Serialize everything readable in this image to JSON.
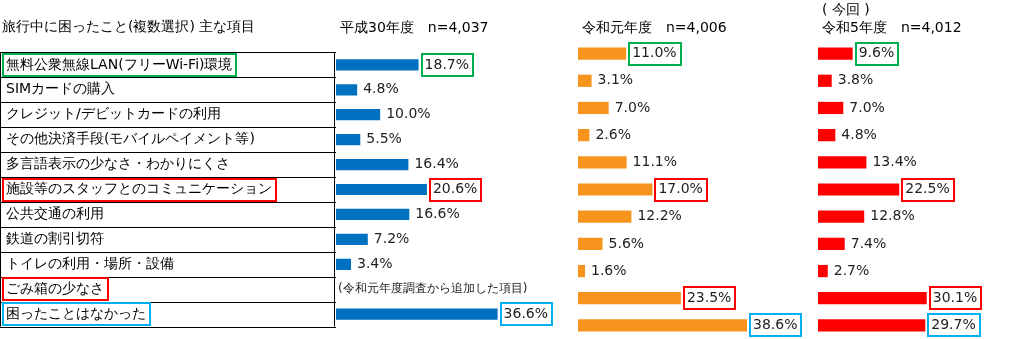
{
  "chart_data": [
    {
      "type": "bar",
      "orientation": "horizontal",
      "ylabel": "旅行中に困ったこと(複数選択) 主な項目",
      "title": "平成30年度　n=4,037",
      "categories": [
        "無料公衆無線LAN(フリーWi-Fi)環境",
        "SIMカードの購入",
        "クレジット/デビットカードの利用",
        "その他決済手段(モバイルペイメント等)",
        "多言語表示の少なさ・わかりにくさ",
        "施設等のスタッフとのコミュニケーション",
        "公共交通の利用",
        "鉄道の割引切符",
        "トイレの利用・場所・設備",
        "ごみ箱の少なさ",
        "困ったことはなかった"
      ],
      "values": [
        18.7,
        4.8,
        10.0,
        5.5,
        16.4,
        20.6,
        16.6,
        7.2,
        3.4,
        null,
        36.6
      ],
      "color": "#0070c0",
      "value_labels": [
        "18.7%",
        "4.8%",
        "10.0%",
        "5.5%",
        "16.4%",
        "20.6%",
        "16.6%",
        "7.2%",
        "3.4%",
        null,
        "36.6%"
      ],
      "annotations": [
        "(令和元年度調査から追加した項目)"
      ]
    },
    {
      "type": "bar",
      "orientation": "horizontal",
      "tick_labels": false,
      "title": "令和元年度　n=4,006",
      "values": [
        11.0,
        3.1,
        7.0,
        2.6,
        11.1,
        17.0,
        12.2,
        5.6,
        1.6,
        23.5,
        38.6
      ],
      "color": "#f7941d",
      "value_labels": [
        "11.0%",
        "3.1%",
        "7.0%",
        "2.6%",
        "11.1%",
        "17.0%",
        "12.2%",
        "5.6%",
        "1.6%",
        "23.5%",
        "38.6%"
      ]
    },
    {
      "type": "bar",
      "orientation": "horizontal",
      "tick_labels": false,
      "title": "令和5年度　n=4,012",
      "subtitle": "( 今回 )",
      "values": [
        9.6,
        3.8,
        7.0,
        4.8,
        13.4,
        22.5,
        12.8,
        7.4,
        2.7,
        30.1,
        29.7
      ],
      "color": "#ff0000",
      "value_labels": [
        "9.6%",
        "3.8%",
        "7.0%",
        "4.8%",
        "13.4%",
        "22.5%",
        "12.8%",
        "7.4%",
        "2.7%",
        "30.1%",
        "29.7%"
      ]
    }
  ]
}
